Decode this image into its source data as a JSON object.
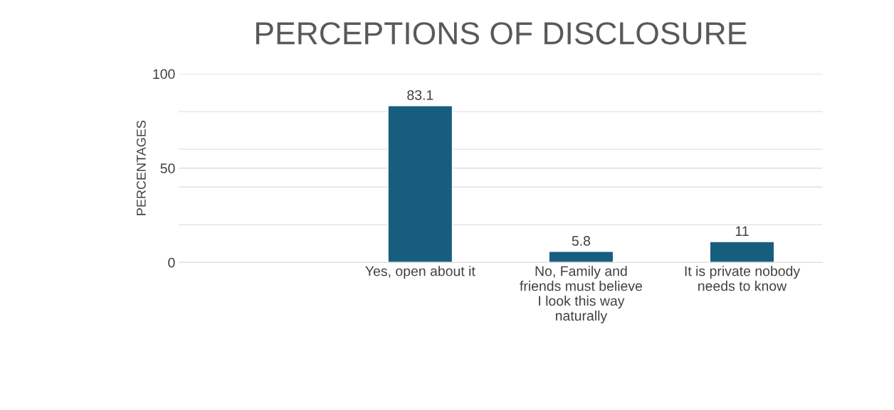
{
  "chart_data": {
    "type": "bar",
    "title": "PERCEPTIONS OF DISCLOSURE",
    "ylabel": "PERCENTAGES",
    "categories": [
      null,
      "Yes, open about it",
      "No, Family and friends must believe I look this way naturally",
      "It is private nobody needs to know"
    ],
    "values": [
      null,
      83.1,
      5.8,
      11
    ],
    "color": "#175e7e",
    "data_labels": true,
    "ylim": [
      0,
      100
    ],
    "yticks": [
      0,
      {
        "value": 20,
        "label": null
      },
      {
        "value": 40,
        "label": null
      },
      50,
      {
        "value": 60,
        "label": null
      },
      {
        "value": 80,
        "label": null
      },
      100
    ],
    "grid": "y",
    "legend": false
  }
}
